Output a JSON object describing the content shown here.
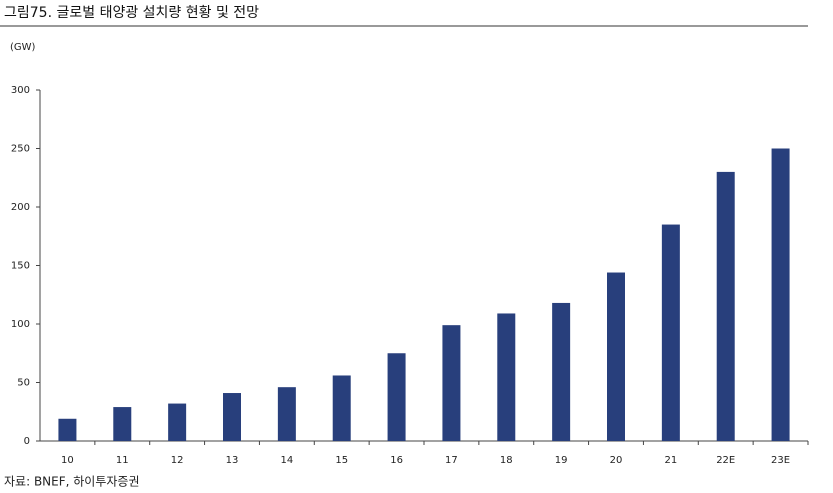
{
  "chart_data": {
    "type": "bar",
    "title": "그림75. 글로벌 태양광 설치량 현황 및 전망",
    "y_label": "(GW)",
    "source": "자료: BNEF, 하이투자증권",
    "categories": [
      "10",
      "11",
      "12",
      "13",
      "14",
      "15",
      "16",
      "17",
      "18",
      "19",
      "20",
      "21",
      "22E",
      "23E"
    ],
    "values": [
      19,
      29,
      32,
      41,
      46,
      56,
      75,
      99,
      109,
      118,
      144,
      185,
      230,
      250
    ],
    "color": "#283f7c",
    "ylim": [
      0,
      300
    ],
    "yticks": [
      0,
      50,
      100,
      150,
      200,
      250,
      300
    ],
    "grid": false
  }
}
